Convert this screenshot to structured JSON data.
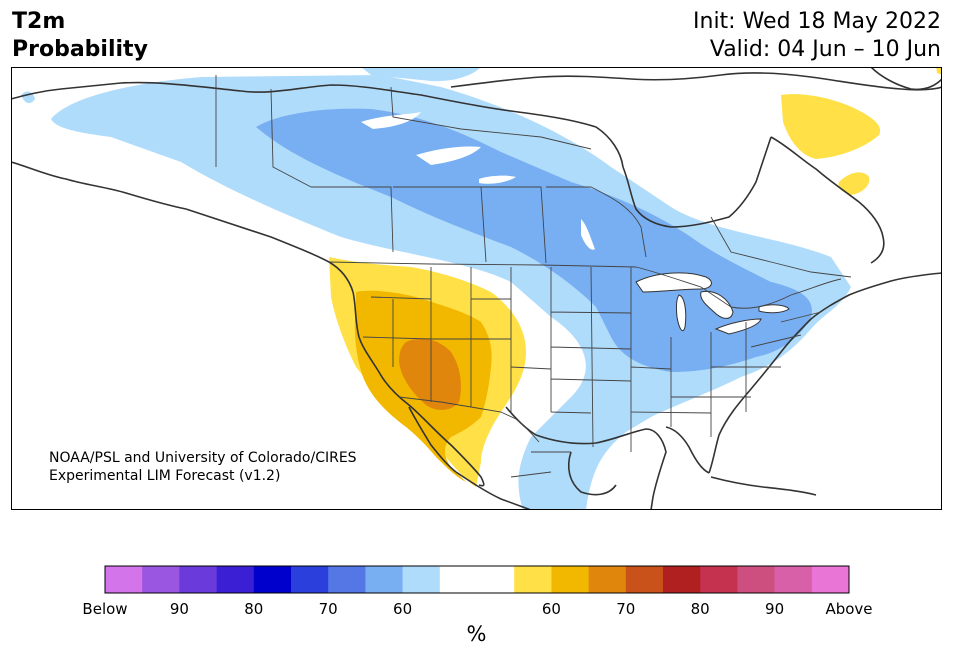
{
  "header": {
    "title_line1": "T2m",
    "title_line2": "Probability",
    "init": "Init: Wed 18 May 2022",
    "valid": "Valid: 04 Jun – 10 Jun"
  },
  "credit": {
    "line1": "NOAA/PSL and University of Colorado/CIRES",
    "line2": "Experimental LIM Forecast (v1.2)"
  },
  "legend": {
    "unit": "%",
    "colors": [
      "#d474ea",
      "#9a56e0",
      "#6a3adb",
      "#3a1fd4",
      "#0000cc",
      "#2a3fdb",
      "#5577e6",
      "#78aff2",
      "#b0dcfb",
      "#ffffff",
      "#ffffff",
      "#ffe047",
      "#f2b800",
      "#e0860d",
      "#c9521a",
      "#b02020",
      "#c43250",
      "#cc4f7f",
      "#d860a8",
      "#e975d6"
    ],
    "tick_labels": [
      "Below",
      "90",
      "80",
      "70",
      "60",
      "60",
      "70",
      "80",
      "90",
      "Above"
    ]
  },
  "map_data": {
    "projection": "lambert-conformal",
    "region": "North America",
    "categories": {
      "below_60": "#b0dcfb",
      "below_70": "#78aff2",
      "above_60": "#ffe047",
      "above_70": "#f2b800",
      "above_80": "#e0860d"
    },
    "colors": {
      "coast": "#333333",
      "borders": "#444444"
    }
  }
}
